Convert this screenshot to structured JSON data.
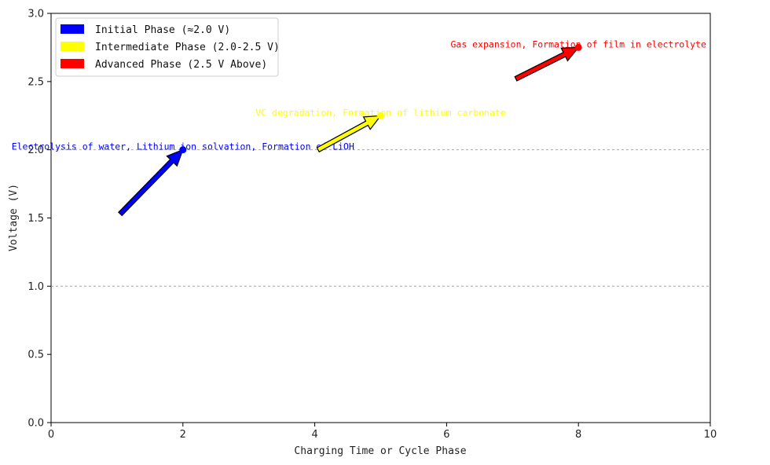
{
  "chart_data": {
    "type": "scatter",
    "title": "",
    "xlabel": "Charging Time or Cycle Phase",
    "ylabel": "Voltage (V)",
    "xlim": [
      0,
      10
    ],
    "ylim": [
      0,
      3
    ],
    "xticks": [
      "0",
      "2",
      "4",
      "6",
      "8",
      "10"
    ],
    "yticks": [
      "0.0",
      "0.5",
      "1.0",
      "1.5",
      "2.0",
      "2.5",
      "3.0"
    ],
    "grid": "horizontal dashed at y=1.0 and y=2.0",
    "legend_position": "top-left",
    "legend": [
      {
        "label": "Initial Phase (≈2.0 V)",
        "color": "#0000ff"
      },
      {
        "label": "Intermediate Phase (2.0-2.5 V)",
        "color": "#ffff00"
      },
      {
        "label": "Advanced Phase (2.5 V Above)",
        "color": "#ff0000"
      }
    ],
    "series": [
      {
        "color": "#0000ff",
        "point": {
          "x": 2,
          "y": 2.0
        },
        "arrow_from": {
          "x": 1.05,
          "y": 1.53
        },
        "annotation": "Electrolysis of water, Lithium ion solvation, Formation of LiOH"
      },
      {
        "color": "#ffff00",
        "point": {
          "x": 5,
          "y": 2.25
        },
        "arrow_from": {
          "x": 4.05,
          "y": 2.0
        },
        "annotation": "VC degradation, Formation of lithium carbonate"
      },
      {
        "color": "#ff0000",
        "point": {
          "x": 8,
          "y": 2.75
        },
        "arrow_from": {
          "x": 7.05,
          "y": 2.52
        },
        "annotation": "Gas expansion, Formation of film in electrolyte"
      }
    ]
  }
}
